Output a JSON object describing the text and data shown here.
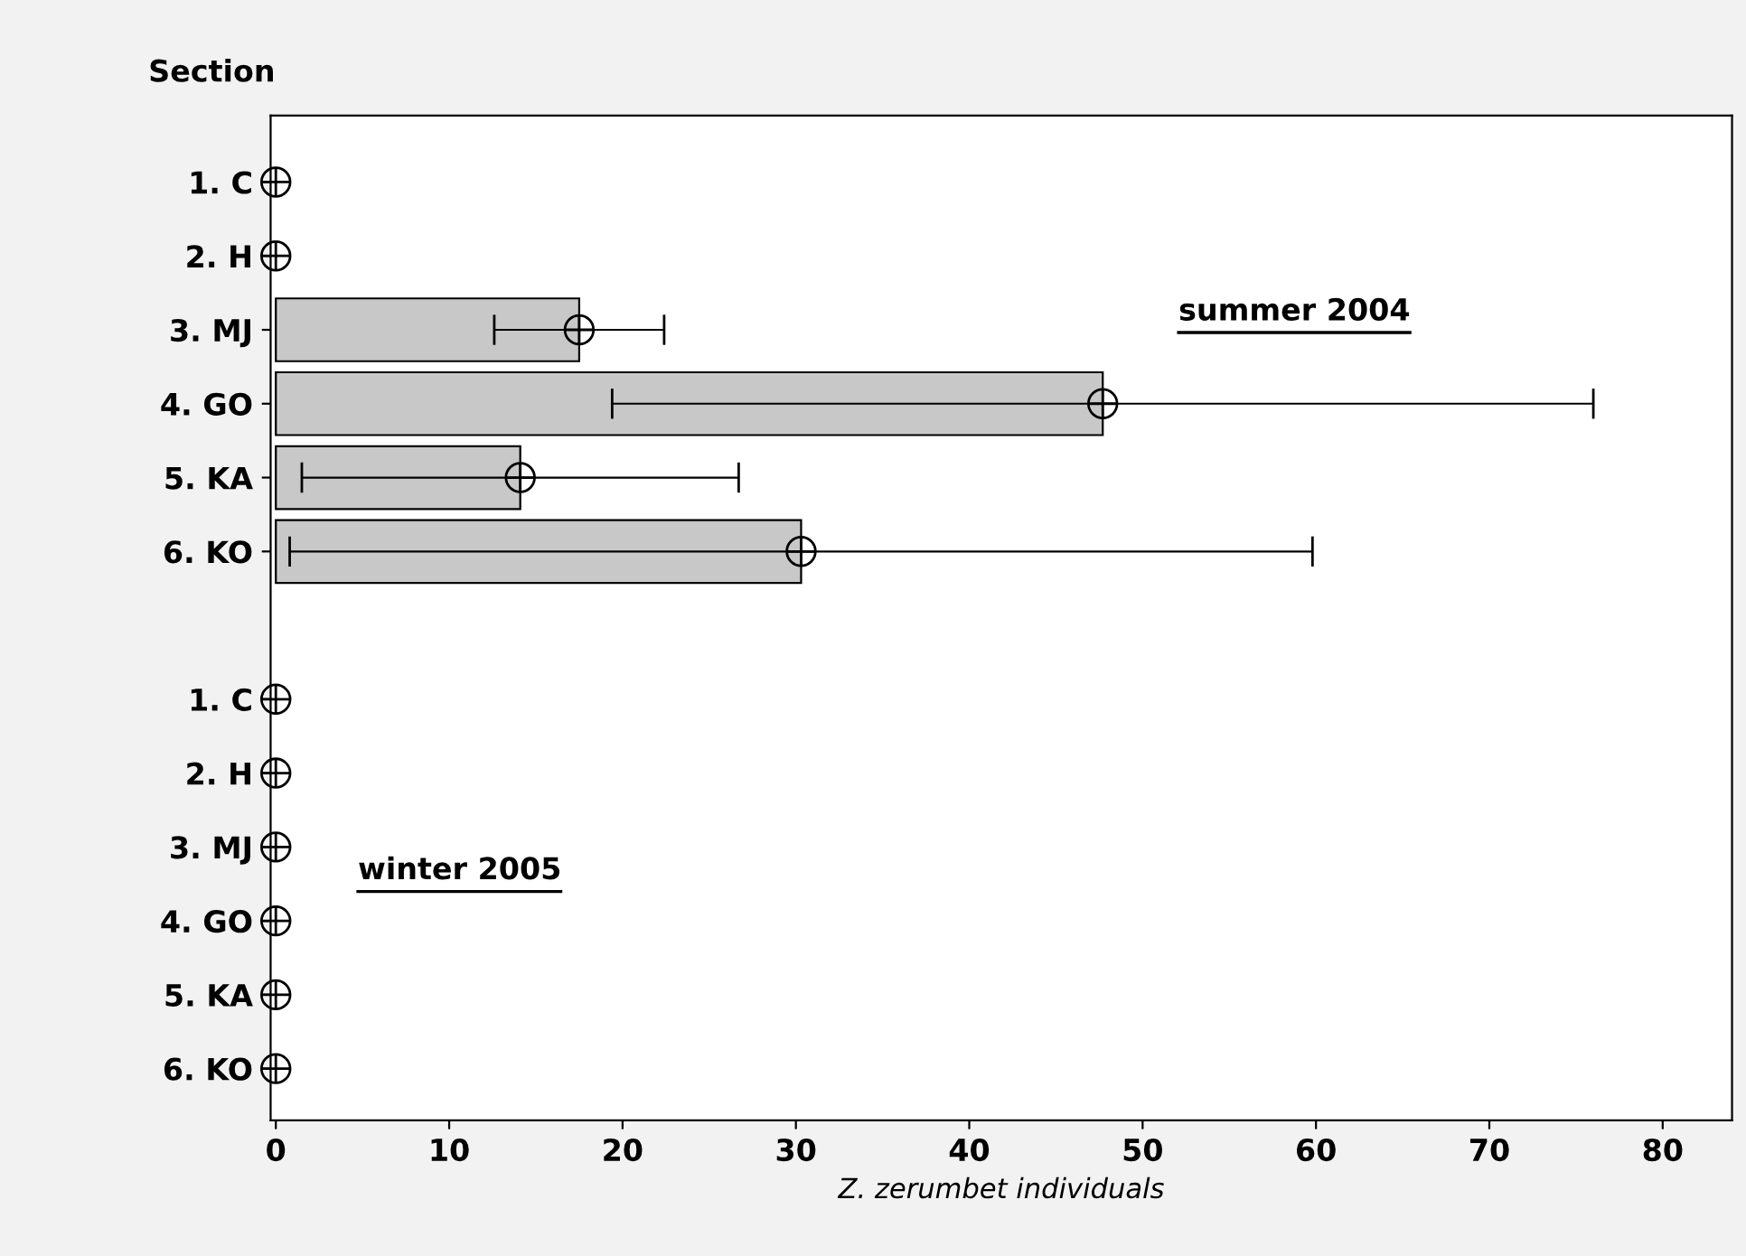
{
  "chart_data": {
    "type": "bar",
    "orientation": "horizontal",
    "ylabel": "Section",
    "xlabel": "Z. zerumbet individuals",
    "categories": [
      "1. C",
      "2. H",
      "3. MJ",
      "4. GO",
      "5. KA",
      "6. KO",
      null,
      "1. C",
      "2. H",
      "3. MJ",
      "4. GO",
      "5. KA",
      "6. KO"
    ],
    "series": [
      {
        "color": "#c8c8c8",
        "values": [
          0,
          0,
          17.5,
          47.7,
          14.1,
          30.3,
          null,
          0,
          0,
          0,
          0,
          0,
          0
        ],
        "errors": [
          null,
          null,
          4.9,
          28.3,
          12.6,
          29.5,
          null,
          null,
          null,
          null,
          null,
          null,
          null
        ]
      },
      {
        "type": "scatter",
        "color": "#000000",
        "marker": "circle",
        "values": [
          0,
          0,
          17.5,
          47.7,
          14.1,
          30.3,
          null,
          0,
          0,
          0,
          0,
          0,
          0
        ]
      }
    ],
    "xlim": [
      -0.3,
      84
    ],
    "xticks": [
      0,
      10,
      20,
      30,
      40,
      50,
      60,
      70,
      80
    ],
    "grid": false,
    "annotations": [
      "summer 2004",
      "winter 2005"
    ]
  }
}
